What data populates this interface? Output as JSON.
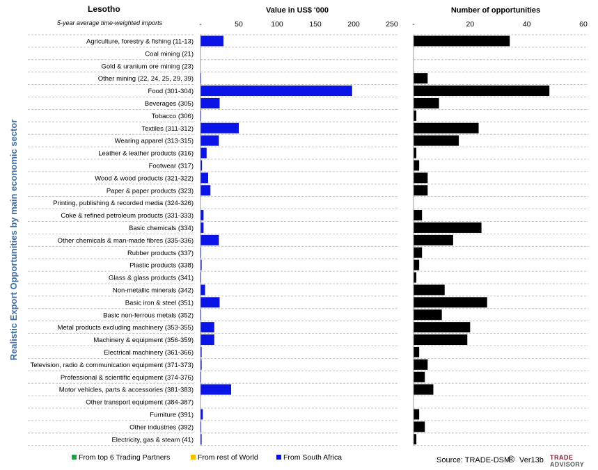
{
  "header": {
    "title": "Lesotho",
    "subtitle": "5-year average time-weighted imports",
    "value_axis_title": "Value in US$ '000",
    "count_axis_title": "Number of opportunities",
    "y_axis_title": "Realistic Export Opportunities by main economic sector"
  },
  "legend": [
    {
      "label": "From top 6 Trading Partners",
      "color": "#1fa34a"
    },
    {
      "label": "From rest of World",
      "color": "#f2c200"
    },
    {
      "label": "From South Africa",
      "color": "#0a14e6"
    }
  ],
  "footer": {
    "source": "Source: TRADE-DSM",
    "registered_mark": "®",
    "version": "Ver13b",
    "logo_line1": "TRADE",
    "logo_line2": "ADVISORY"
  },
  "chart_data": [
    {
      "type": "bar",
      "orientation": "horizontal",
      "title": "Value in US$ '000",
      "xlim": [
        0,
        250
      ],
      "ticks": [
        "-",
        "50",
        "100",
        "150",
        "200",
        "250"
      ],
      "tick_values": [
        0,
        50,
        100,
        150,
        200,
        250
      ],
      "color": "#0a14e6",
      "categories": [
        "Agriculture, forestry & fishing (11-13)",
        "Coal mining (21)",
        "Gold & uranium ore mining (23)",
        "Other mining (22, 24, 25, 29, 39)",
        "Food (301-304)",
        "Beverages (305)",
        "Tobacco (306)",
        "Textiles (311-312)",
        "Wearing apparel (313-315)",
        "Leather & leather products (316)",
        "Footwear (317)",
        "Wood & wood products (321-322)",
        "Paper & paper products (323)",
        "Printing, publishing & recorded media (324-326)",
        "Coke & refined petroleum products (331-333)",
        "Basic chemicals (334)",
        "Other chemicals & man-made fibres (335-336)",
        "Rubber products (337)",
        "Plastic products (338)",
        "Glass & glass products (341)",
        "Non-metallic minerals (342)",
        "Basic iron & steel (351)",
        "Basic non-ferrous metals (352)",
        "Metal products excluding machinery (353-355)",
        "Machinery & equipment (356-359)",
        "Electrical machinery (361-366)",
        "Television, radio & communication equipment (371-373)",
        "Professional & scientific equipment (374-376)",
        "Motor vehicles, parts & accessories (381-383)",
        "Other transport equipment (384-387)",
        "Furniture (391)",
        "Other industries (392)",
        "Electricity, gas & steam (41)"
      ],
      "values": [
        30,
        0,
        0,
        0.5,
        198,
        25,
        0.3,
        50,
        24,
        8,
        2,
        10,
        13,
        0,
        4,
        4,
        24,
        0.5,
        1.5,
        0.5,
        6,
        25,
        0.5,
        18,
        18,
        1.5,
        1.5,
        0.5,
        40,
        0,
        3,
        1,
        1.5
      ]
    },
    {
      "type": "bar",
      "orientation": "horizontal",
      "title": "Number of opportunities",
      "xlim": [
        0,
        60
      ],
      "ticks": [
        "-",
        "20",
        "40",
        "60"
      ],
      "tick_values": [
        0,
        20,
        40,
        60
      ],
      "color": "#000000",
      "values": [
        34,
        0,
        0,
        5,
        48,
        9,
        1,
        23,
        16,
        1,
        2,
        5,
        5,
        0,
        3,
        24,
        14,
        3,
        2,
        1,
        11,
        26,
        10,
        20,
        19,
        2,
        5,
        4,
        7,
        0,
        2,
        4,
        1
      ]
    }
  ]
}
